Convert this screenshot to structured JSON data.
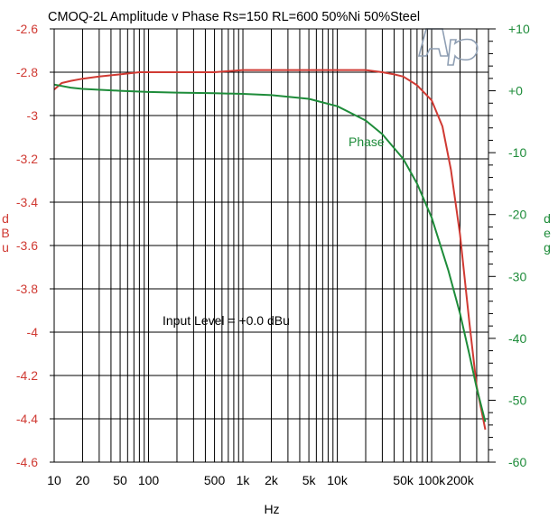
{
  "chart_data": {
    "type": "line",
    "title": "CMOQ-2L  Amplitude v Phase Rs=150 RL=600 50%Ni 50%Steel",
    "xlabel": "Hz",
    "ylabel_left": "dBu",
    "ylabel_right": "deg",
    "annotation": "Input Level = +0.0 dBu",
    "logo": "Ap",
    "x_scale": "log",
    "xlim": [
      10,
      400000
    ],
    "ylim_left": [
      -4.6,
      -2.6
    ],
    "ylim_right": [
      -60,
      10
    ],
    "grid": true,
    "x_ticks": [
      {
        "v": 10,
        "label": "10"
      },
      {
        "v": 20,
        "label": "20"
      },
      {
        "v": 50,
        "label": "50"
      },
      {
        "v": 100,
        "label": "100"
      },
      {
        "v": 500,
        "label": "500"
      },
      {
        "v": 1000,
        "label": "1k"
      },
      {
        "v": 2000,
        "label": "2k"
      },
      {
        "v": 5000,
        "label": "5k"
      },
      {
        "v": 10000,
        "label": "10k"
      },
      {
        "v": 50000,
        "label": "50k"
      },
      {
        "v": 100000,
        "label": "100k"
      },
      {
        "v": 200000,
        "label": "200k"
      }
    ],
    "y_left_ticks": [
      {
        "v": -2.6,
        "label": "-2.6"
      },
      {
        "v": -2.8,
        "label": "-2.8"
      },
      {
        "v": -3.0,
        "label": "-3"
      },
      {
        "v": -3.2,
        "label": "-3.2"
      },
      {
        "v": -3.4,
        "label": "-3.4"
      },
      {
        "v": -3.6,
        "label": "-3.6"
      },
      {
        "v": -3.8,
        "label": "-3.8"
      },
      {
        "v": -4.0,
        "label": "-4"
      },
      {
        "v": -4.2,
        "label": "-4.2"
      },
      {
        "v": -4.4,
        "label": "-4.4"
      },
      {
        "v": -4.6,
        "label": "-4.6"
      }
    ],
    "y_right_ticks": [
      {
        "v": 10,
        "label": "+10"
      },
      {
        "v": 0,
        "label": "+0"
      },
      {
        "v": -10,
        "label": "-10"
      },
      {
        "v": -20,
        "label": "-20"
      },
      {
        "v": -30,
        "label": "-30"
      },
      {
        "v": -40,
        "label": "-40"
      },
      {
        "v": -50,
        "label": "-50"
      },
      {
        "v": -60,
        "label": "-60"
      }
    ],
    "series": [
      {
        "name": "",
        "axis": "left",
        "color": "#d03a33",
        "points": [
          [
            10,
            -2.88
          ],
          [
            12,
            -2.85
          ],
          [
            15,
            -2.84
          ],
          [
            20,
            -2.83
          ],
          [
            30,
            -2.82
          ],
          [
            50,
            -2.81
          ],
          [
            80,
            -2.8
          ],
          [
            100,
            -2.8
          ],
          [
            200,
            -2.8
          ],
          [
            500,
            -2.8
          ],
          [
            1000,
            -2.79
          ],
          [
            5000,
            -2.79
          ],
          [
            10000,
            -2.79
          ],
          [
            20000,
            -2.79
          ],
          [
            30000,
            -2.8
          ],
          [
            40000,
            -2.81
          ],
          [
            50000,
            -2.82
          ],
          [
            70000,
            -2.86
          ],
          [
            100000,
            -2.93
          ],
          [
            130000,
            -3.05
          ],
          [
            160000,
            -3.25
          ],
          [
            200000,
            -3.55
          ],
          [
            250000,
            -3.95
          ],
          [
            300000,
            -4.25
          ],
          [
            370000,
            -4.45
          ]
        ]
      },
      {
        "name": "Phase",
        "axis": "right",
        "color": "#1e8c3a",
        "points": [
          [
            10,
            1.0
          ],
          [
            15,
            0.5
          ],
          [
            20,
            0.3
          ],
          [
            50,
            0.0
          ],
          [
            100,
            -0.2
          ],
          [
            200,
            -0.3
          ],
          [
            500,
            -0.4
          ],
          [
            1000,
            -0.5
          ],
          [
            2000,
            -0.7
          ],
          [
            5000,
            -1.3
          ],
          [
            10000,
            -2.5
          ],
          [
            20000,
            -4.8
          ],
          [
            30000,
            -7.0
          ],
          [
            50000,
            -11.0
          ],
          [
            70000,
            -15.0
          ],
          [
            100000,
            -20.5
          ],
          [
            150000,
            -29.0
          ],
          [
            200000,
            -36.0
          ],
          [
            250000,
            -42.5
          ],
          [
            300000,
            -48.0
          ],
          [
            370000,
            -53.5
          ]
        ]
      }
    ]
  }
}
